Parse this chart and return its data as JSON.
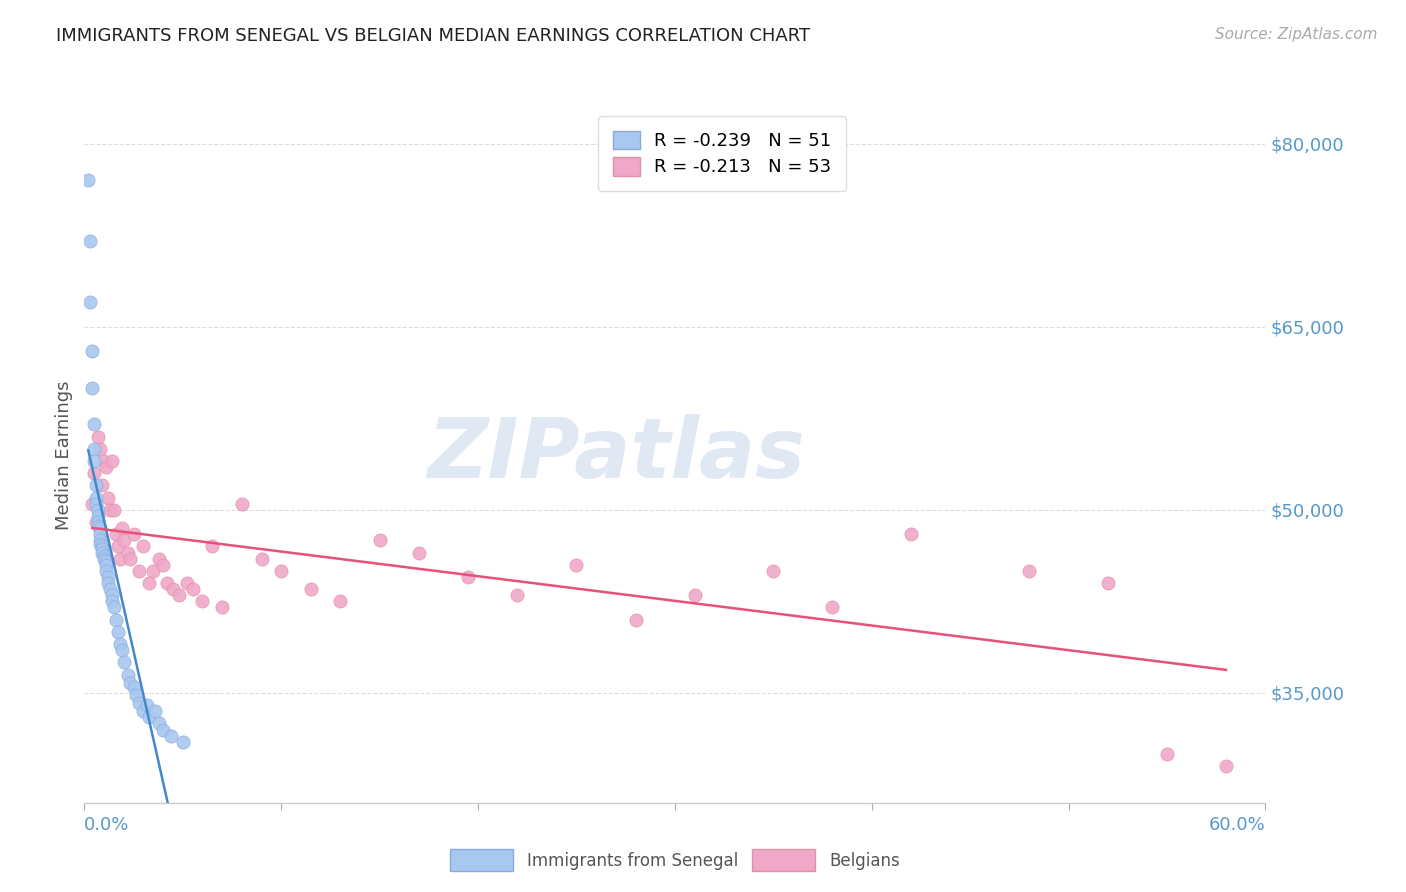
{
  "title": "IMMIGRANTS FROM SENEGAL VS BELGIAN MEDIAN EARNINGS CORRELATION CHART",
  "source": "Source: ZipAtlas.com",
  "ylabel": "Median Earnings",
  "yticks": [
    35000,
    50000,
    65000,
    80000
  ],
  "ytick_labels": [
    "$35,000",
    "$50,000",
    "$65,000",
    "$80,000"
  ],
  "xmin": 0.0,
  "xmax": 0.6,
  "ymin": 26000,
  "ymax": 83000,
  "legend_r1": "R = -0.239   N = 51",
  "legend_r2": "R = -0.213   N = 53",
  "legend_label_1": "Immigrants from Senegal",
  "legend_label_2": "Belgians",
  "blue_color": "#a8c8f0",
  "blue_edge": "#88aadd",
  "pink_color": "#f0a8c8",
  "pink_edge": "#e090a8",
  "blue_line_color": "#4488cc",
  "pink_line_color": "#e8507a",
  "gray_dash_color": "#aaaaaa",
  "axis_color": "#5599cc",
  "grid_color": "#dddddd",
  "title_color": "#222222",
  "source_color": "#aaaaaa",
  "ylabel_color": "#555555",
  "watermark": "ZIPatlas",
  "watermark_color": "#e0e8f4",
  "blue_x": [
    0.002,
    0.003,
    0.003,
    0.004,
    0.004,
    0.005,
    0.005,
    0.005,
    0.006,
    0.006,
    0.006,
    0.007,
    0.007,
    0.007,
    0.007,
    0.008,
    0.008,
    0.008,
    0.008,
    0.009,
    0.009,
    0.009,
    0.01,
    0.01,
    0.011,
    0.011,
    0.011,
    0.012,
    0.012,
    0.013,
    0.014,
    0.014,
    0.015,
    0.016,
    0.017,
    0.018,
    0.019,
    0.02,
    0.022,
    0.023,
    0.025,
    0.026,
    0.028,
    0.03,
    0.032,
    0.033,
    0.036,
    0.038,
    0.04,
    0.044,
    0.05
  ],
  "blue_y": [
    77000,
    72000,
    67000,
    63000,
    60000,
    57000,
    55000,
    54000,
    52000,
    51000,
    50500,
    50000,
    49500,
    49000,
    48700,
    48500,
    48000,
    47500,
    47200,
    47000,
    46800,
    46500,
    46200,
    46000,
    45800,
    45500,
    45000,
    44500,
    44000,
    43500,
    43000,
    42500,
    42000,
    41000,
    40000,
    39000,
    38500,
    37500,
    36500,
    35800,
    35500,
    34800,
    34200,
    33500,
    34000,
    33000,
    33500,
    32500,
    32000,
    31500,
    31000
  ],
  "pink_x": [
    0.004,
    0.005,
    0.006,
    0.007,
    0.008,
    0.009,
    0.01,
    0.011,
    0.012,
    0.013,
    0.014,
    0.015,
    0.016,
    0.017,
    0.018,
    0.019,
    0.02,
    0.022,
    0.023,
    0.025,
    0.028,
    0.03,
    0.033,
    0.035,
    0.038,
    0.04,
    0.042,
    0.045,
    0.048,
    0.052,
    0.055,
    0.06,
    0.065,
    0.07,
    0.08,
    0.09,
    0.1,
    0.115,
    0.13,
    0.15,
    0.17,
    0.195,
    0.22,
    0.25,
    0.28,
    0.31,
    0.35,
    0.38,
    0.42,
    0.48,
    0.52,
    0.55,
    0.58
  ],
  "pink_y": [
    50500,
    53000,
    49000,
    56000,
    55000,
    52000,
    54000,
    53500,
    51000,
    50000,
    54000,
    50000,
    48000,
    47000,
    46000,
    48500,
    47500,
    46500,
    46000,
    48000,
    45000,
    47000,
    44000,
    45000,
    46000,
    45500,
    44000,
    43500,
    43000,
    44000,
    43500,
    42500,
    47000,
    42000,
    50500,
    46000,
    45000,
    43500,
    42500,
    47500,
    46500,
    44500,
    43000,
    45500,
    41000,
    43000,
    45000,
    42000,
    48000,
    45000,
    44000,
    30000,
    29000
  ]
}
